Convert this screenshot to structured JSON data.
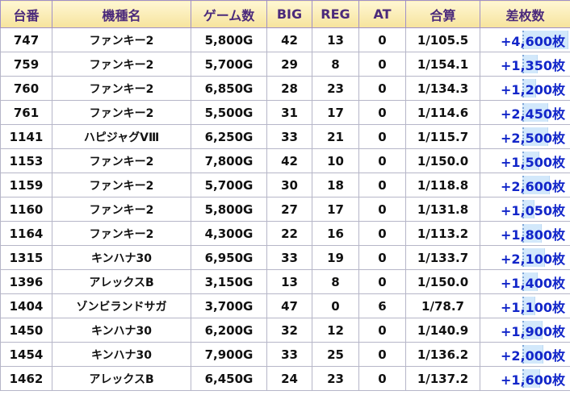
{
  "table": {
    "headers": {
      "machine_no": "台番",
      "model": "機種名",
      "games": "ゲーム数",
      "big": "BIG",
      "reg": "REG",
      "at": "AT",
      "total": "合算",
      "diff": "差枚数"
    },
    "colors": {
      "header_bg": "#f6e39c",
      "header_text": "#4b2a7b",
      "diff_text": "#1226c9",
      "bar_fill": "#d2e8fb"
    },
    "rows": [
      {
        "no": "747",
        "model": "ファンキー2",
        "games": "5,800G",
        "big": "42",
        "reg": "13",
        "at": "0",
        "total": "1/105.5",
        "diff": "+4,600枚",
        "diff_value": 4600
      },
      {
        "no": "759",
        "model": "ファンキー2",
        "games": "5,700G",
        "big": "29",
        "reg": "8",
        "at": "0",
        "total": "1/154.1",
        "diff": "+1,350枚",
        "diff_value": 1350
      },
      {
        "no": "760",
        "model": "ファンキー2",
        "games": "6,850G",
        "big": "28",
        "reg": "23",
        "at": "0",
        "total": "1/134.3",
        "diff": "+1,200枚",
        "diff_value": 1200
      },
      {
        "no": "761",
        "model": "ファンキー2",
        "games": "5,500G",
        "big": "31",
        "reg": "17",
        "at": "0",
        "total": "1/114.6",
        "diff": "+2,450枚",
        "diff_value": 2450
      },
      {
        "no": "1141",
        "model": "ハピジャグVⅢ",
        "games": "6,250G",
        "big": "33",
        "reg": "21",
        "at": "0",
        "total": "1/115.7",
        "diff": "+2,500枚",
        "diff_value": 2500
      },
      {
        "no": "1153",
        "model": "ファンキー2",
        "games": "7,800G",
        "big": "42",
        "reg": "10",
        "at": "0",
        "total": "1/150.0",
        "diff": "+1,500枚",
        "diff_value": 1500
      },
      {
        "no": "1159",
        "model": "ファンキー2",
        "games": "5,700G",
        "big": "30",
        "reg": "18",
        "at": "0",
        "total": "1/118.8",
        "diff": "+2,600枚",
        "diff_value": 2600
      },
      {
        "no": "1160",
        "model": "ファンキー2",
        "games": "5,800G",
        "big": "27",
        "reg": "17",
        "at": "0",
        "total": "1/131.8",
        "diff": "+1,050枚",
        "diff_value": 1050
      },
      {
        "no": "1164",
        "model": "ファンキー2",
        "games": "4,300G",
        "big": "22",
        "reg": "16",
        "at": "0",
        "total": "1/113.2",
        "diff": "+1,800枚",
        "diff_value": 1800
      },
      {
        "no": "1315",
        "model": "キンハナ30",
        "games": "6,950G",
        "big": "33",
        "reg": "19",
        "at": "0",
        "total": "1/133.7",
        "diff": "+2,100枚",
        "diff_value": 2100
      },
      {
        "no": "1396",
        "model": "アレックスB",
        "games": "3,150G",
        "big": "13",
        "reg": "8",
        "at": "0",
        "total": "1/150.0",
        "diff": "+1,400枚",
        "diff_value": 1400
      },
      {
        "no": "1404",
        "model": "ゾンビランドサガ",
        "games": "3,700G",
        "big": "47",
        "reg": "0",
        "at": "6",
        "total": "1/78.7",
        "diff": "+1,100枚",
        "diff_value": 1100
      },
      {
        "no": "1450",
        "model": "キンハナ30",
        "games": "6,200G",
        "big": "32",
        "reg": "12",
        "at": "0",
        "total": "1/140.9",
        "diff": "+1,900枚",
        "diff_value": 1900
      },
      {
        "no": "1454",
        "model": "キンハナ30",
        "games": "7,900G",
        "big": "33",
        "reg": "25",
        "at": "0",
        "total": "1/136.2",
        "diff": "+2,000枚",
        "diff_value": 2000
      },
      {
        "no": "1462",
        "model": "アレックスB",
        "games": "6,450G",
        "big": "24",
        "reg": "23",
        "at": "0",
        "total": "1/137.2",
        "diff": "+1,600枚",
        "diff_value": 1600
      }
    ]
  }
}
